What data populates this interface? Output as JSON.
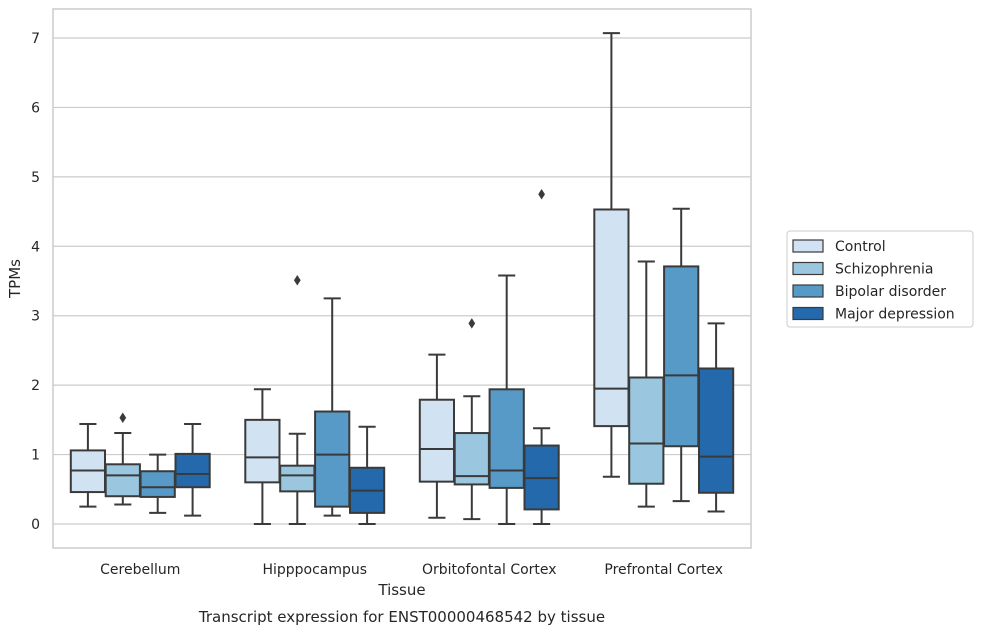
{
  "chart_data": {
    "type": "box",
    "title": "",
    "caption": "Transcript expression for ENST00000468542 by tissue",
    "xlabel": "Tissue",
    "ylabel": "TPMs",
    "ylim": [
      -0.35,
      7.42
    ],
    "yticks": [
      "0",
      "1",
      "2",
      "3",
      "4",
      "5",
      "6",
      "7"
    ],
    "ytick_values": [
      0,
      1,
      2,
      3,
      4,
      5,
      6,
      7
    ],
    "grid": "horizontal",
    "legend_position": "right",
    "categories": [
      "Cerebellum",
      "Hipppocampus",
      "Orbitofontal Cortex",
      "Prefrontal Cortex"
    ],
    "series": [
      {
        "name": "Control",
        "color": "#d1e2f2",
        "boxes": [
          {
            "whisker_low": 0.25,
            "q1": 0.46,
            "median": 0.77,
            "q3": 1.06,
            "whisker_high": 1.44,
            "outliers": []
          },
          {
            "whisker_low": 0.0,
            "q1": 0.6,
            "median": 0.96,
            "q3": 1.5,
            "whisker_high": 1.94,
            "outliers": []
          },
          {
            "whisker_low": 0.09,
            "q1": 0.61,
            "median": 1.08,
            "q3": 1.79,
            "whisker_high": 2.44,
            "outliers": []
          },
          {
            "whisker_low": 0.68,
            "q1": 1.41,
            "median": 1.95,
            "q3": 4.53,
            "whisker_high": 7.07,
            "outliers": []
          }
        ]
      },
      {
        "name": "Schizophrenia",
        "color": "#9ac7df",
        "boxes": [
          {
            "whisker_low": 0.28,
            "q1": 0.4,
            "median": 0.7,
            "q3": 0.86,
            "whisker_high": 1.31,
            "outliers": [
              1.53
            ]
          },
          {
            "whisker_low": 0.0,
            "q1": 0.47,
            "median": 0.7,
            "q3": 0.84,
            "whisker_high": 1.3,
            "outliers": [
              3.51
            ]
          },
          {
            "whisker_low": 0.07,
            "q1": 0.57,
            "median": 0.69,
            "q3": 1.31,
            "whisker_high": 1.84,
            "outliers": [
              2.89
            ]
          },
          {
            "whisker_low": 0.25,
            "q1": 0.58,
            "median": 1.16,
            "q3": 2.11,
            "whisker_high": 3.78,
            "outliers": []
          }
        ]
      },
      {
        "name": "Bipolar disorder",
        "color": "#5799c7",
        "boxes": [
          {
            "whisker_low": 0.16,
            "q1": 0.39,
            "median": 0.53,
            "q3": 0.76,
            "whisker_high": 1.0,
            "outliers": []
          },
          {
            "whisker_low": 0.12,
            "q1": 0.25,
            "median": 1.0,
            "q3": 1.62,
            "whisker_high": 3.25,
            "outliers": []
          },
          {
            "whisker_low": 0.0,
            "q1": 0.52,
            "median": 0.77,
            "q3": 1.94,
            "whisker_high": 3.58,
            "outliers": []
          },
          {
            "whisker_low": 0.33,
            "q1": 1.12,
            "median": 2.14,
            "q3": 3.71,
            "whisker_high": 4.54,
            "outliers": []
          }
        ]
      },
      {
        "name": "Major depression",
        "color": "#2469ab",
        "boxes": [
          {
            "whisker_low": 0.12,
            "q1": 0.53,
            "median": 0.72,
            "q3": 1.01,
            "whisker_high": 1.44,
            "outliers": []
          },
          {
            "whisker_low": 0.0,
            "q1": 0.16,
            "median": 0.48,
            "q3": 0.81,
            "whisker_high": 1.4,
            "outliers": []
          },
          {
            "whisker_low": 0.0,
            "q1": 0.21,
            "median": 0.66,
            "q3": 1.13,
            "whisker_high": 1.38,
            "outliers": [
              4.75
            ]
          },
          {
            "whisker_low": 0.18,
            "q1": 0.45,
            "median": 0.97,
            "q3": 2.24,
            "whisker_high": 2.89,
            "outliers": []
          }
        ]
      }
    ]
  }
}
